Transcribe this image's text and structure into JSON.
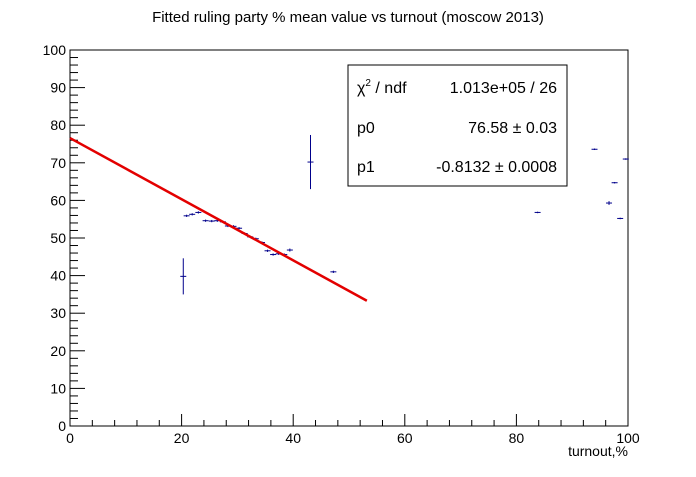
{
  "chart_data": {
    "type": "scatter",
    "title": "Fitted ruling party % mean value vs turnout (moscow 2013)",
    "xlabel": "turnout,%",
    "ylabel": "",
    "xlim": [
      0,
      100
    ],
    "ylim": [
      0,
      100
    ],
    "x_ticks": [
      "0",
      "20",
      "40",
      "60",
      "80",
      "100"
    ],
    "y_ticks": [
      "0",
      "10",
      "20",
      "30",
      "40",
      "50",
      "60",
      "70",
      "80",
      "90",
      "100"
    ],
    "grid": false,
    "legend": "none",
    "series": [
      {
        "points": [
          {
            "x": 20.3,
            "y": 39.8,
            "err": 4.8
          },
          {
            "x": 20.9,
            "y": 55.9,
            "err": 0.3
          },
          {
            "x": 21.9,
            "y": 56.3,
            "err": 0.3
          },
          {
            "x": 23.0,
            "y": 56.8,
            "err": 0.3
          },
          {
            "x": 24.3,
            "y": 54.6,
            "err": 0.3
          },
          {
            "x": 25.4,
            "y": 54.5,
            "err": 0.3
          },
          {
            "x": 26.4,
            "y": 54.6,
            "err": 0.3
          },
          {
            "x": 27.4,
            "y": 54.3,
            "err": 0.3
          },
          {
            "x": 28.3,
            "y": 53.2,
            "err": 0.3
          },
          {
            "x": 29.3,
            "y": 53.1,
            "err": 0.3
          },
          {
            "x": 30.3,
            "y": 52.6,
            "err": 0.3
          },
          {
            "x": 31.3,
            "y": 51.2,
            "err": 0.3
          },
          {
            "x": 32.3,
            "y": 50.3,
            "err": 0.3
          },
          {
            "x": 33.3,
            "y": 49.8,
            "err": 0.3
          },
          {
            "x": 34.4,
            "y": 48.8,
            "err": 0.3
          },
          {
            "x": 35.4,
            "y": 46.6,
            "err": 0.3
          },
          {
            "x": 36.4,
            "y": 45.6,
            "err": 0.3
          },
          {
            "x": 37.4,
            "y": 45.8,
            "err": 0.3
          },
          {
            "x": 38.4,
            "y": 45.6,
            "err": 0.3
          },
          {
            "x": 39.4,
            "y": 46.8,
            "err": 0.4
          },
          {
            "x": 43.1,
            "y": 70.2,
            "err": 7.2
          },
          {
            "x": 47.2,
            "y": 41.0,
            "err": 0.3
          },
          {
            "x": 83.8,
            "y": 56.8,
            "err": 0.2
          },
          {
            "x": 94.0,
            "y": 73.6,
            "err": 0.2
          },
          {
            "x": 96.6,
            "y": 59.3,
            "err": 0.5
          },
          {
            "x": 97.6,
            "y": 64.7,
            "err": 0.2
          },
          {
            "x": 98.6,
            "y": 55.2,
            "err": 0.2
          },
          {
            "x": 99.6,
            "y": 71.0,
            "err": 0.2
          }
        ],
        "color": "#00008b"
      }
    ],
    "fit": {
      "color": "#e30000",
      "x_start": 0,
      "x_end": 53.2,
      "p0": 76.58,
      "p1": -0.8132
    },
    "stats_box": {
      "chi2_label": "χ",
      "chi2_sup": "2",
      "chi2_rest": " / ndf",
      "chi2_value": "1.013e+05 / 26",
      "p0_label": "p0",
      "p0_value": "76.58 ± 0.03",
      "p1_label": "p1",
      "p1_value": "-0.8132 ± 0.0008"
    }
  }
}
